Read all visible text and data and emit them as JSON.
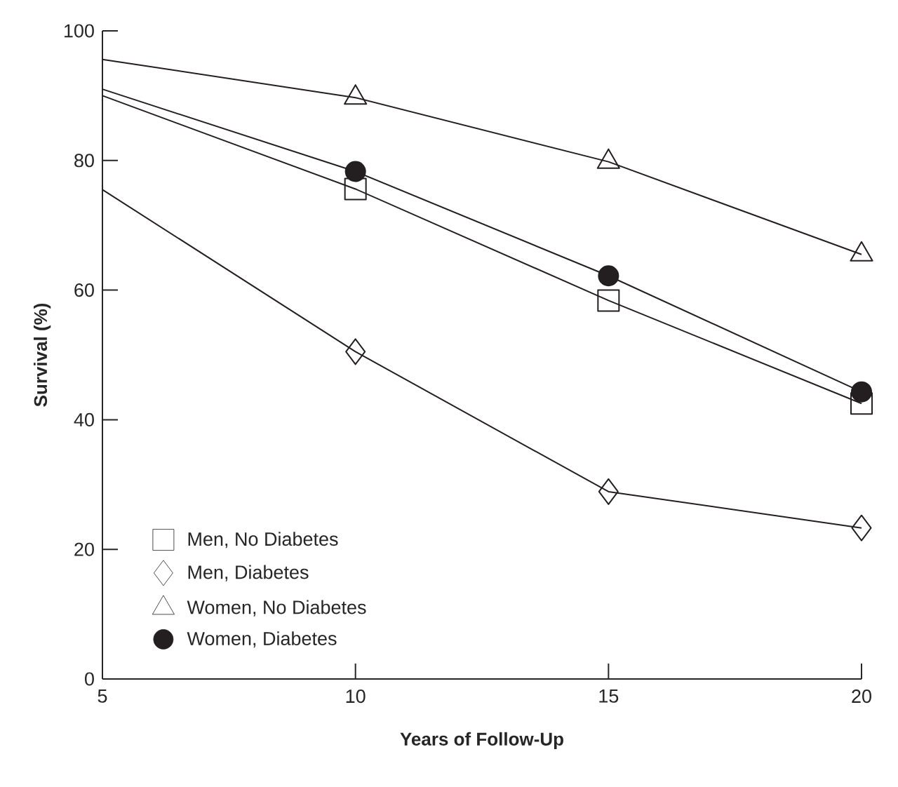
{
  "chart_data": {
    "type": "line",
    "xlabel": "Years of Follow-Up",
    "ylabel": "Survival (%)",
    "x": [
      5,
      10,
      15,
      20
    ],
    "series": [
      {
        "name": "Men, No Diabetes",
        "color": "#231f20",
        "marker": "square",
        "values": [
          90,
          75.6,
          58.4,
          42.5
        ]
      },
      {
        "name": "Men, Diabetes",
        "color": "#231f20",
        "marker": "diamond",
        "values": [
          75.5,
          50.5,
          28.9,
          23.3
        ]
      },
      {
        "name": "Women, No Diabetes",
        "color": "#231f20",
        "marker": "triangle",
        "values": [
          95.6,
          89.7,
          79.8,
          65.5
        ]
      },
      {
        "name": "Women, Diabetes",
        "color": "#231f20",
        "marker": "circle",
        "values": [
          91,
          78.3,
          62.2,
          44.3
        ]
      }
    ],
    "xlim": [
      5,
      20
    ],
    "ylim": [
      0,
      100
    ],
    "xticks": [
      5,
      10,
      15,
      20
    ],
    "yticks": [
      0,
      20,
      40,
      60,
      80,
      100
    ],
    "grid": false,
    "legend": "bottom left",
    "line_style": "solid"
  }
}
